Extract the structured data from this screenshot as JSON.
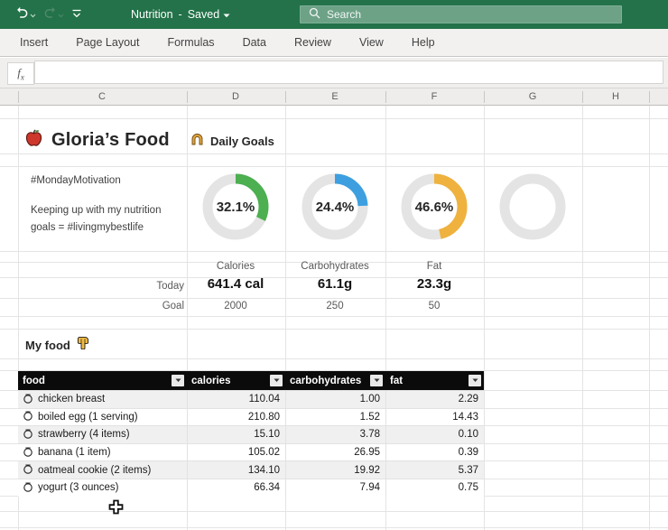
{
  "titlebar": {
    "document_title": "Nutrition",
    "separator": "-",
    "status": "Saved",
    "search_placeholder": "Search",
    "colors": {
      "bar": "#237249",
      "search_bg": "#6DA287"
    }
  },
  "ribbon": {
    "tabs": [
      {
        "label": "Insert"
      },
      {
        "label": "Page Layout"
      },
      {
        "label": "Formulas"
      },
      {
        "label": "Data"
      },
      {
        "label": "Review"
      },
      {
        "label": "View"
      },
      {
        "label": "Help"
      }
    ]
  },
  "formula_bar": {
    "fx_label": "f",
    "fx_sub": "x",
    "value": ""
  },
  "column_headers": [
    "C",
    "D",
    "E",
    "F",
    "G",
    "H"
  ],
  "sheet": {
    "title": "Gloria’s Food",
    "daily_goals_label": "Daily Goals",
    "social_line1": "#MondayMotivation",
    "social_line2": "Keeping up with my nutrition goals = #livingmybestlife",
    "donuts": [
      {
        "label": "32.1%",
        "percent": 32.1,
        "color": "#4CAF50"
      },
      {
        "label": "24.4%",
        "percent": 24.4,
        "color": "#3D9FE0"
      },
      {
        "label": "46.6%",
        "percent": 46.6,
        "color": "#EFB23E"
      },
      {
        "label": "",
        "percent": 0,
        "color": "#E4E4E4"
      }
    ],
    "metric_labels": [
      "Calories",
      "Carbohydrates",
      "Fat"
    ],
    "today_label": "Today",
    "today_values": [
      "641.4 cal",
      "61.1g",
      "23.3g"
    ],
    "goal_label": "Goal",
    "goal_values": [
      "2000",
      "250",
      "50"
    ],
    "my_food_label": "My food"
  },
  "table": {
    "headers": [
      "food",
      "calories",
      "carbohydrates",
      "fat"
    ],
    "rows": [
      {
        "food": "chicken breast",
        "calories": "110.04",
        "carbohydrates": "1.00",
        "fat": "2.29"
      },
      {
        "food": "boiled egg (1 serving)",
        "calories": "210.80",
        "carbohydrates": "1.52",
        "fat": "14.43"
      },
      {
        "food": "strawberry (4 items)",
        "calories": "15.10",
        "carbohydrates": "3.78",
        "fat": "0.10"
      },
      {
        "food": "banana (1 item)",
        "calories": "105.02",
        "carbohydrates": "26.95",
        "fat": "0.39"
      },
      {
        "food": "oatmeal cookie (2 items)",
        "calories": "134.10",
        "carbohydrates": "19.92",
        "fat": "5.37"
      },
      {
        "food": "yogurt (3 ounces)",
        "calories": "66.34",
        "carbohydrates": "7.94",
        "fat": "0.75"
      }
    ]
  },
  "chart_data": {
    "type": "pie",
    "subtype": "donut-progress-rings",
    "series": [
      {
        "name": "Calories",
        "percent": 32.1,
        "today": "641.4 cal",
        "goal": 2000,
        "color": "#4CAF50"
      },
      {
        "name": "Carbohydrates",
        "percent": 24.4,
        "today": "61.1g",
        "goal": 250,
        "color": "#3D9FE0"
      },
      {
        "name": "Fat",
        "percent": 46.6,
        "today": "23.3g",
        "goal": 50,
        "color": "#EFB23E"
      }
    ],
    "title": "Daily Goals",
    "legend_position": "none",
    "track_color": "#E4E4E4"
  }
}
